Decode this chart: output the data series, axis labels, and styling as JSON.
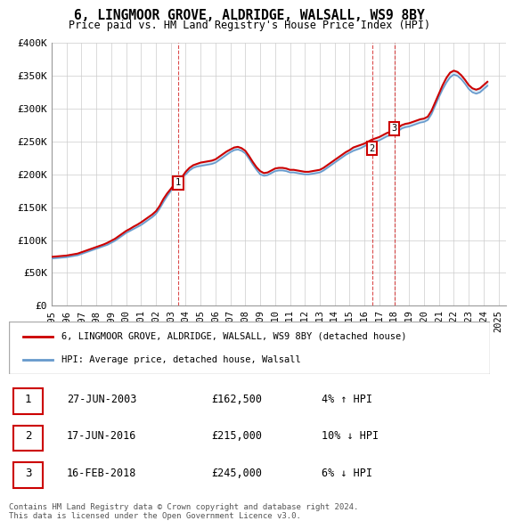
{
  "title": "6, LINGMOOR GROVE, ALDRIDGE, WALSALL, WS9 8BY",
  "subtitle": "Price paid vs. HM Land Registry's House Price Index (HPI)",
  "ylabel": "",
  "xlabel": "",
  "ylim": [
    0,
    400000
  ],
  "yticks": [
    0,
    50000,
    100000,
    150000,
    200000,
    250000,
    300000,
    350000,
    400000
  ],
  "ytick_labels": [
    "£0",
    "£50K",
    "£100K",
    "£150K",
    "£200K",
    "£250K",
    "£300K",
    "£350K",
    "£400K"
  ],
  "xlim_start": 1995.0,
  "xlim_end": 2025.5,
  "hpi_years": [
    1995.0,
    1995.25,
    1995.5,
    1995.75,
    1996.0,
    1996.25,
    1996.5,
    1996.75,
    1997.0,
    1997.25,
    1997.5,
    1997.75,
    1998.0,
    1998.25,
    1998.5,
    1998.75,
    1999.0,
    1999.25,
    1999.5,
    1999.75,
    2000.0,
    2000.25,
    2000.5,
    2000.75,
    2001.0,
    2001.25,
    2001.5,
    2001.75,
    2002.0,
    2002.25,
    2002.5,
    2002.75,
    2003.0,
    2003.25,
    2003.5,
    2003.75,
    2004.0,
    2004.25,
    2004.5,
    2004.75,
    2005.0,
    2005.25,
    2005.5,
    2005.75,
    2006.0,
    2006.25,
    2006.5,
    2006.75,
    2007.0,
    2007.25,
    2007.5,
    2007.75,
    2008.0,
    2008.25,
    2008.5,
    2008.75,
    2009.0,
    2009.25,
    2009.5,
    2009.75,
    2010.0,
    2010.25,
    2010.5,
    2010.75,
    2011.0,
    2011.25,
    2011.5,
    2011.75,
    2012.0,
    2012.25,
    2012.5,
    2012.75,
    2013.0,
    2013.25,
    2013.5,
    2013.75,
    2014.0,
    2014.25,
    2014.5,
    2014.75,
    2015.0,
    2015.25,
    2015.5,
    2015.75,
    2016.0,
    2016.25,
    2016.5,
    2016.75,
    2017.0,
    2017.25,
    2017.5,
    2017.75,
    2018.0,
    2018.25,
    2018.5,
    2018.75,
    2019.0,
    2019.25,
    2019.5,
    2019.75,
    2020.0,
    2020.25,
    2020.5,
    2020.75,
    2021.0,
    2021.25,
    2021.5,
    2021.75,
    2022.0,
    2022.25,
    2022.5,
    2022.75,
    2023.0,
    2023.25,
    2023.5,
    2023.75,
    2024.0,
    2024.25
  ],
  "hpi_values": [
    72000,
    72500,
    73000,
    73500,
    74000,
    75000,
    76000,
    77000,
    79000,
    81000,
    83000,
    85000,
    87000,
    89000,
    91000,
    93000,
    96000,
    99000,
    103000,
    107000,
    111000,
    114000,
    117000,
    120000,
    123000,
    127000,
    131000,
    135000,
    140000,
    148000,
    158000,
    167000,
    175000,
    183000,
    190000,
    196000,
    200000,
    206000,
    210000,
    212000,
    213000,
    214000,
    215000,
    216000,
    218000,
    222000,
    226000,
    230000,
    234000,
    237000,
    238000,
    236000,
    232000,
    224000,
    215000,
    207000,
    200000,
    198000,
    199000,
    202000,
    205000,
    206000,
    206000,
    205000,
    203000,
    203000,
    202000,
    201000,
    200000,
    200000,
    201000,
    202000,
    203000,
    206000,
    210000,
    214000,
    218000,
    222000,
    226000,
    230000,
    233000,
    236000,
    238000,
    240000,
    243000,
    246000,
    249000,
    250000,
    252000,
    255000,
    258000,
    260000,
    262000,
    266000,
    270000,
    272000,
    273000,
    275000,
    277000,
    279000,
    280000,
    283000,
    292000,
    305000,
    318000,
    330000,
    340000,
    348000,
    352000,
    350000,
    345000,
    338000,
    330000,
    325000,
    323000,
    325000,
    330000,
    335000
  ],
  "property_years": [
    1995.0,
    1995.25,
    1995.5,
    1995.75,
    1996.0,
    1996.25,
    1996.5,
    1996.75,
    1997.0,
    1997.25,
    1997.5,
    1997.75,
    1998.0,
    1998.25,
    1998.5,
    1998.75,
    1999.0,
    1999.25,
    1999.5,
    1999.75,
    2000.0,
    2000.25,
    2000.5,
    2000.75,
    2001.0,
    2001.25,
    2001.5,
    2001.75,
    2002.0,
    2002.25,
    2002.5,
    2002.75,
    2003.0,
    2003.25,
    2003.5,
    2003.75,
    2004.0,
    2004.25,
    2004.5,
    2004.75,
    2005.0,
    2005.25,
    2005.5,
    2005.75,
    2006.0,
    2006.25,
    2006.5,
    2006.75,
    2007.0,
    2007.25,
    2007.5,
    2007.75,
    2008.0,
    2008.25,
    2008.5,
    2008.75,
    2009.0,
    2009.25,
    2009.5,
    2009.75,
    2010.0,
    2010.25,
    2010.5,
    2010.75,
    2011.0,
    2011.25,
    2011.5,
    2011.75,
    2012.0,
    2012.25,
    2012.5,
    2012.75,
    2013.0,
    2013.25,
    2013.5,
    2013.75,
    2014.0,
    2014.25,
    2014.5,
    2014.75,
    2015.0,
    2015.25,
    2015.5,
    2015.75,
    2016.0,
    2016.25,
    2016.5,
    2016.75,
    2017.0,
    2017.25,
    2017.5,
    2017.75,
    2018.0,
    2018.25,
    2018.5,
    2018.75,
    2019.0,
    2019.25,
    2019.5,
    2019.75,
    2020.0,
    2020.25,
    2020.5,
    2020.75,
    2021.0,
    2021.25,
    2021.5,
    2021.75,
    2022.0,
    2022.25,
    2022.5,
    2022.75,
    2023.0,
    2023.25,
    2023.5,
    2023.75,
    2024.0,
    2024.25
  ],
  "property_values": [
    74500,
    75000,
    75500,
    76000,
    76500,
    77500,
    78500,
    79500,
    81500,
    83500,
    85500,
    87500,
    89500,
    91500,
    93500,
    96000,
    99000,
    102000,
    106000,
    110000,
    114000,
    117000,
    120500,
    123500,
    127000,
    131000,
    135000,
    139000,
    144000,
    152000,
    162500,
    171000,
    178000,
    185000,
    191000,
    196000,
    204000,
    210000,
    214000,
    216000,
    218000,
    219000,
    220000,
    221000,
    223000,
    227000,
    231000,
    235000,
    238000,
    241000,
    242000,
    240000,
    236000,
    228000,
    219000,
    211000,
    205000,
    202000,
    203000,
    206000,
    209000,
    210000,
    210000,
    209000,
    207000,
    207000,
    206000,
    205000,
    204000,
    204000,
    205000,
    206000,
    207000,
    210000,
    214000,
    218000,
    222000,
    226000,
    230000,
    234000,
    237000,
    241000,
    243000,
    245000,
    247000,
    250000,
    253000,
    255000,
    257000,
    260000,
    263000,
    265000,
    267000,
    271000,
    275000,
    277000,
    278000,
    280000,
    282000,
    284000,
    285000,
    288000,
    297000,
    310000,
    323000,
    336000,
    347000,
    355000,
    358000,
    356000,
    351000,
    344000,
    336000,
    331000,
    329000,
    331000,
    336000,
    341000
  ],
  "transactions": [
    {
      "year": 2003.5,
      "value": 162500,
      "label": "1",
      "date": "27-JUN-2003",
      "price": "£162,500",
      "hpi_diff": "4% ↑ HPI"
    },
    {
      "year": 2016.5,
      "value": 215000,
      "label": "2",
      "date": "17-JUN-2016",
      "price": "£215,000",
      "hpi_diff": "10% ↓ HPI"
    },
    {
      "year": 2018.0,
      "value": 245000,
      "label": "3",
      "date": "16-FEB-2018",
      "price": "£245,000",
      "hpi_diff": "6% ↓ HPI"
    }
  ],
  "legend_line1": "6, LINGMOOR GROVE, ALDRIDGE, WALSALL, WS9 8BY (detached house)",
  "legend_line2": "HPI: Average price, detached house, Walsall",
  "footnote": "Contains HM Land Registry data © Crown copyright and database right 2024.\nThis data is licensed under the Open Government Licence v3.0.",
  "property_color": "#cc0000",
  "hpi_color": "#6699cc",
  "hpi_fill_color": "#cce0f0",
  "background_color": "#ffffff",
  "grid_color": "#cccccc",
  "xticks": [
    1995,
    1996,
    1997,
    1998,
    1999,
    2000,
    2001,
    2002,
    2003,
    2004,
    2005,
    2006,
    2007,
    2008,
    2009,
    2010,
    2011,
    2012,
    2013,
    2014,
    2015,
    2016,
    2017,
    2018,
    2019,
    2020,
    2021,
    2022,
    2023,
    2024,
    2025
  ]
}
